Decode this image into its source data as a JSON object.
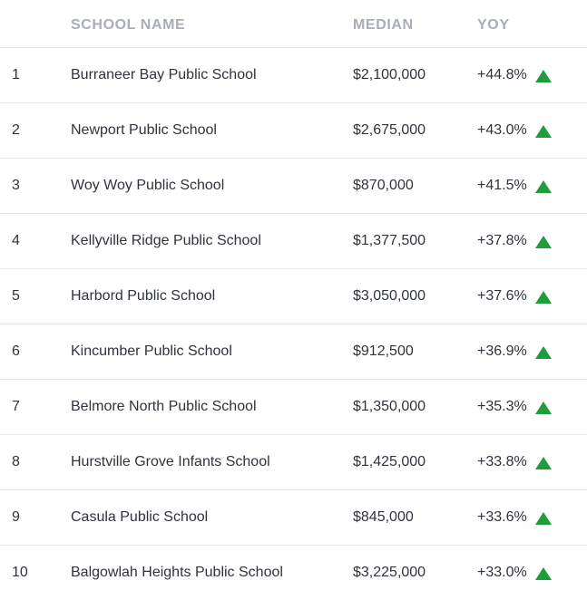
{
  "table": {
    "headers": {
      "name": "SCHOOL NAME",
      "median": "MEDIAN",
      "yoy": "YOY"
    },
    "trend_icon": "triangle-up-icon",
    "trend_color": "#1f9d3a",
    "rows": [
      {
        "rank": "1",
        "name": "Burraneer Bay Public School",
        "median": "$2,100,000",
        "yoy": "+44.8%"
      },
      {
        "rank": "2",
        "name": "Newport Public School",
        "median": "$2,675,000",
        "yoy": "+43.0%"
      },
      {
        "rank": "3",
        "name": "Woy Woy Public School",
        "median": "$870,000",
        "yoy": "+41.5%"
      },
      {
        "rank": "4",
        "name": "Kellyville Ridge Public School",
        "median": "$1,377,500",
        "yoy": "+37.8%"
      },
      {
        "rank": "5",
        "name": "Harbord Public School",
        "median": "$3,050,000",
        "yoy": "+37.6%"
      },
      {
        "rank": "6",
        "name": "Kincumber Public School",
        "median": "$912,500",
        "yoy": "+36.9%"
      },
      {
        "rank": "7",
        "name": "Belmore North Public School",
        "median": "$1,350,000",
        "yoy": "+35.3%"
      },
      {
        "rank": "8",
        "name": "Hurstville Grove Infants School",
        "median": "$1,425,000",
        "yoy": "+33.8%"
      },
      {
        "rank": "9",
        "name": "Casula Public School",
        "median": "$845,000",
        "yoy": "+33.6%"
      },
      {
        "rank": "10",
        "name": "Balgowlah Heights Public School",
        "median": "$3,225,000",
        "yoy": "+33.0%"
      }
    ]
  }
}
